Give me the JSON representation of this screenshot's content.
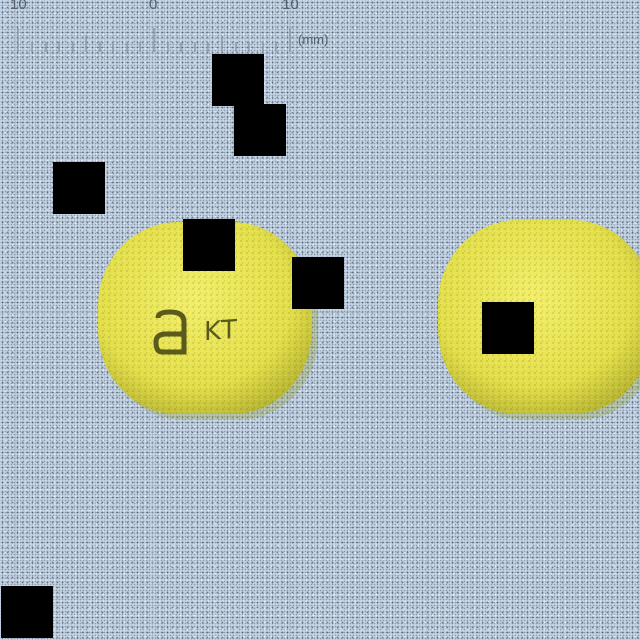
{
  "ruler": {
    "labels": [
      "10",
      "0",
      "10"
    ],
    "unit": "(mm)"
  },
  "tablet_left": {
    "imprint_logo": "a",
    "imprint_text": "KT",
    "color": "#e6e24e"
  },
  "tablet_right": {
    "color": "#e6e24e"
  }
}
